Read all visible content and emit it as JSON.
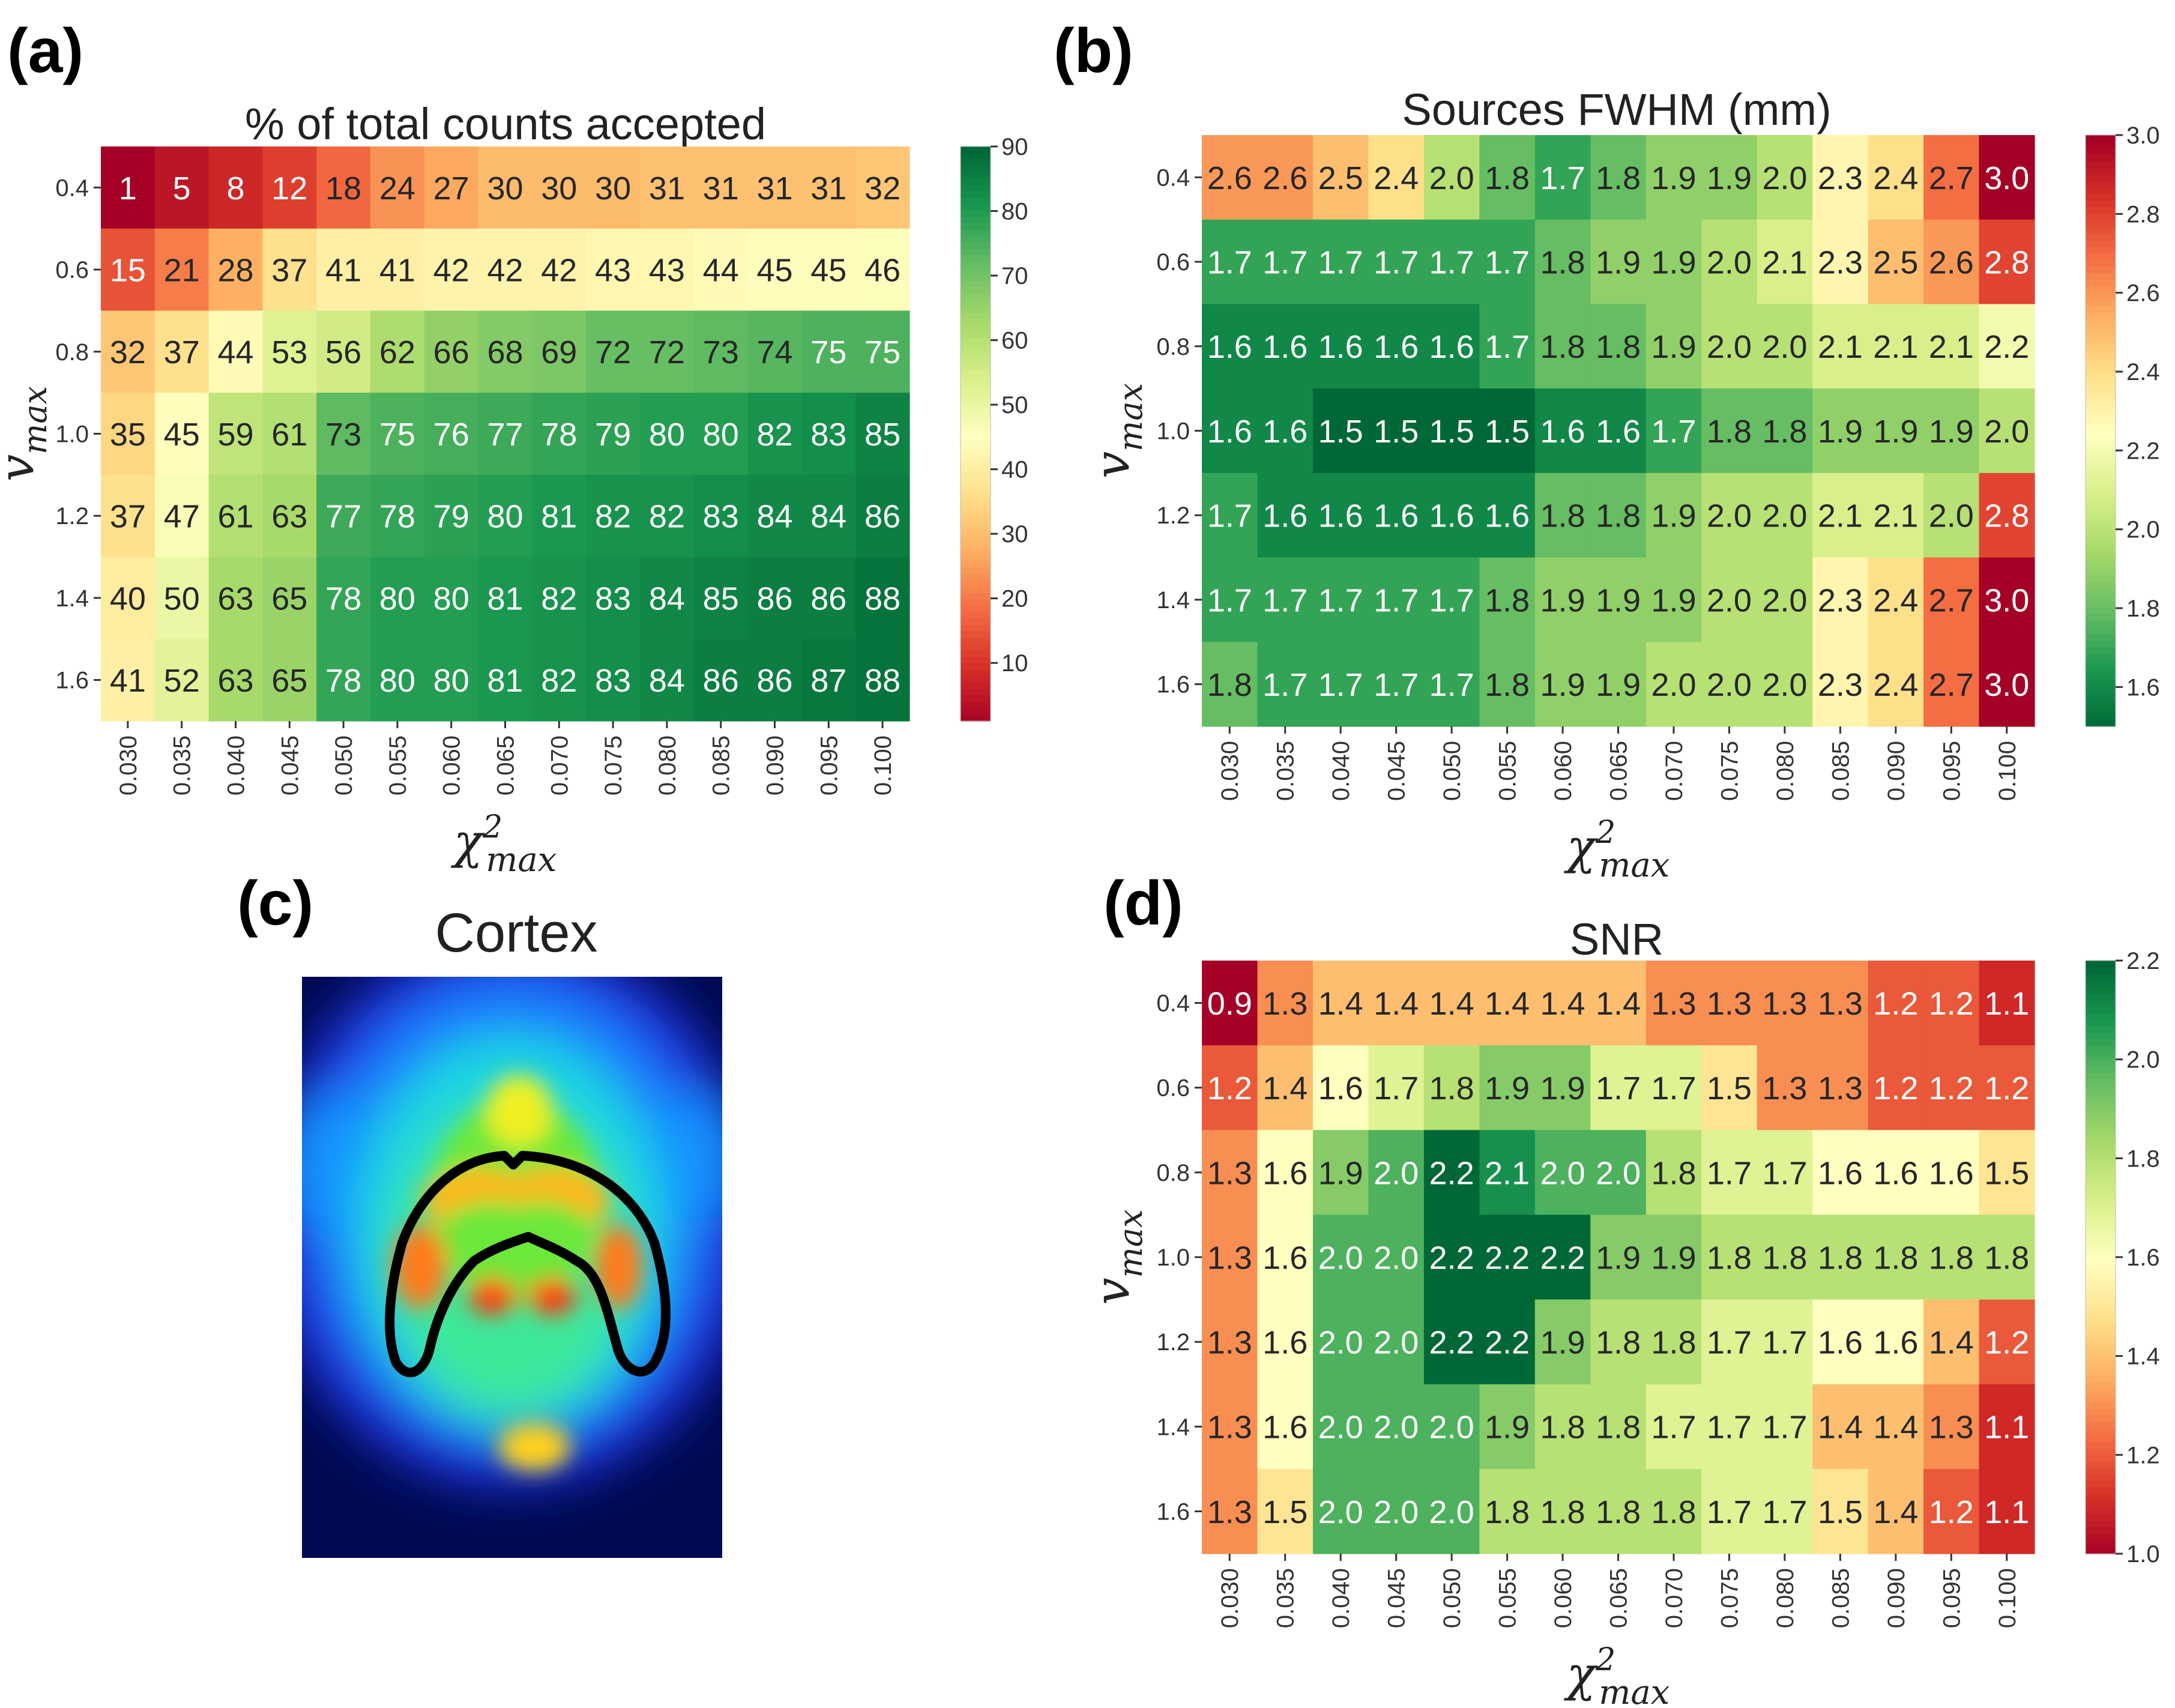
{
  "colors": {
    "rdylgn": [
      "#a50026",
      "#d73027",
      "#f46d43",
      "#fdae61",
      "#fee08b",
      "#ffffbf",
      "#d9ef8b",
      "#a6d96a",
      "#66bd63",
      "#1a9850",
      "#006837"
    ]
  },
  "chart_data": [
    {
      "id": "a",
      "panel_label": "(a)",
      "type": "heatmap",
      "title": "% of total counts accepted",
      "xlabel": {
        "main": "χ",
        "sup": "2",
        "sub": "max"
      },
      "ylabel": {
        "main": "v",
        "sub": "max"
      },
      "x": [
        "0.030",
        "0.035",
        "0.040",
        "0.045",
        "0.050",
        "0.055",
        "0.060",
        "0.065",
        "0.070",
        "0.075",
        "0.080",
        "0.085",
        "0.090",
        "0.095",
        "0.100"
      ],
      "y": [
        "0.4",
        "0.6",
        "0.8",
        "1.0",
        "1.2",
        "1.4",
        "1.6"
      ],
      "values": [
        [
          1,
          5,
          8,
          12,
          18,
          24,
          27,
          30,
          30,
          30,
          31,
          31,
          31,
          31,
          32
        ],
        [
          15,
          21,
          28,
          37,
          41,
          41,
          42,
          42,
          42,
          43,
          43,
          44,
          45,
          45,
          46
        ],
        [
          32,
          37,
          44,
          53,
          56,
          62,
          66,
          68,
          69,
          72,
          72,
          73,
          74,
          75,
          75
        ],
        [
          35,
          45,
          59,
          61,
          73,
          75,
          76,
          77,
          78,
          79,
          80,
          80,
          82,
          83,
          85
        ],
        [
          37,
          47,
          61,
          63,
          77,
          78,
          79,
          80,
          81,
          82,
          82,
          83,
          84,
          84,
          86
        ],
        [
          40,
          50,
          63,
          65,
          78,
          80,
          80,
          81,
          82,
          83,
          84,
          85,
          86,
          86,
          88
        ],
        [
          41,
          52,
          63,
          65,
          78,
          80,
          80,
          81,
          82,
          83,
          84,
          86,
          86,
          87,
          88
        ]
      ],
      "decimals": 0,
      "colormap": "RdYlGn",
      "vmin": 1,
      "vmax": 90,
      "colorbar_ticks": [
        "10",
        "20",
        "30",
        "40",
        "50",
        "60",
        "70",
        "80",
        "90"
      ]
    },
    {
      "id": "b",
      "panel_label": "(b)",
      "type": "heatmap",
      "title": "Sources FWHM (mm)",
      "xlabel": {
        "main": "χ",
        "sup": "2",
        "sub": "max"
      },
      "ylabel": {
        "main": "v",
        "sub": "max"
      },
      "x": [
        "0.030",
        "0.035",
        "0.040",
        "0.045",
        "0.050",
        "0.055",
        "0.060",
        "0.065",
        "0.070",
        "0.075",
        "0.080",
        "0.085",
        "0.090",
        "0.095",
        "0.100"
      ],
      "y": [
        "0.4",
        "0.6",
        "0.8",
        "1.0",
        "1.2",
        "1.4",
        "1.6"
      ],
      "values": [
        [
          2.6,
          2.6,
          2.5,
          2.4,
          2.0,
          1.8,
          1.7,
          1.8,
          1.9,
          1.9,
          2.0,
          2.3,
          2.4,
          2.7,
          3.0
        ],
        [
          1.7,
          1.7,
          1.7,
          1.7,
          1.7,
          1.7,
          1.8,
          1.9,
          1.9,
          2.0,
          2.1,
          2.3,
          2.5,
          2.6,
          2.8
        ],
        [
          1.6,
          1.6,
          1.6,
          1.6,
          1.6,
          1.7,
          1.8,
          1.8,
          1.9,
          2.0,
          2.0,
          2.1,
          2.1,
          2.1,
          2.2
        ],
        [
          1.6,
          1.6,
          1.5,
          1.5,
          1.5,
          1.5,
          1.6,
          1.6,
          1.7,
          1.8,
          1.8,
          1.9,
          1.9,
          1.9,
          2.0
        ],
        [
          1.7,
          1.6,
          1.6,
          1.6,
          1.6,
          1.6,
          1.8,
          1.8,
          1.9,
          2.0,
          2.0,
          2.1,
          2.1,
          2.0,
          2.8
        ],
        [
          1.7,
          1.7,
          1.7,
          1.7,
          1.7,
          1.8,
          1.9,
          1.9,
          1.9,
          2.0,
          2.0,
          2.3,
          2.4,
          2.7,
          3.0
        ],
        [
          1.8,
          1.7,
          1.7,
          1.7,
          1.7,
          1.8,
          1.9,
          1.9,
          2.0,
          2.0,
          2.0,
          2.3,
          2.4,
          2.7,
          3.0
        ]
      ],
      "decimals": 1,
      "colormap": "RdYlGn_r",
      "vmin": 1.5,
      "vmax": 3.0,
      "colorbar_ticks": [
        "1.6",
        "1.8",
        "2.0",
        "2.2",
        "2.4",
        "2.6",
        "2.8",
        "3.0"
      ]
    },
    {
      "id": "d",
      "panel_label": "(d)",
      "type": "heatmap",
      "title": "SNR",
      "xlabel": {
        "main": "χ",
        "sup": "2",
        "sub": "max"
      },
      "ylabel": {
        "main": "v",
        "sub": "max"
      },
      "x": [
        "0.030",
        "0.035",
        "0.040",
        "0.045",
        "0.050",
        "0.055",
        "0.060",
        "0.065",
        "0.070",
        "0.075",
        "0.080",
        "0.085",
        "0.090",
        "0.095",
        "0.100"
      ],
      "y": [
        "0.4",
        "0.6",
        "0.8",
        "1.0",
        "1.2",
        "1.4",
        "1.6"
      ],
      "values": [
        [
          0.9,
          1.3,
          1.4,
          1.4,
          1.4,
          1.4,
          1.4,
          1.4,
          1.3,
          1.3,
          1.3,
          1.3,
          1.2,
          1.2,
          1.1
        ],
        [
          1.2,
          1.4,
          1.6,
          1.7,
          1.8,
          1.9,
          1.9,
          1.7,
          1.7,
          1.5,
          1.3,
          1.3,
          1.2,
          1.2,
          1.2
        ],
        [
          1.3,
          1.6,
          1.9,
          2.0,
          2.2,
          2.1,
          2.0,
          2.0,
          1.8,
          1.7,
          1.7,
          1.6,
          1.6,
          1.6,
          1.5
        ],
        [
          1.3,
          1.6,
          2.0,
          2.0,
          2.2,
          2.2,
          2.2,
          1.9,
          1.9,
          1.8,
          1.8,
          1.8,
          1.8,
          1.8,
          1.8
        ],
        [
          1.3,
          1.6,
          2.0,
          2.0,
          2.2,
          2.2,
          1.9,
          1.8,
          1.8,
          1.7,
          1.7,
          1.6,
          1.6,
          1.4,
          1.2
        ],
        [
          1.3,
          1.6,
          2.0,
          2.0,
          2.0,
          1.9,
          1.8,
          1.8,
          1.7,
          1.7,
          1.7,
          1.4,
          1.4,
          1.3,
          1.1
        ],
        [
          1.3,
          1.5,
          2.0,
          2.0,
          2.0,
          1.8,
          1.8,
          1.8,
          1.8,
          1.7,
          1.7,
          1.5,
          1.4,
          1.2,
          1.1
        ]
      ],
      "decimals": 1,
      "colormap": "RdYlGn",
      "vmin": 1.0,
      "vmax": 2.2,
      "colorbar_ticks": [
        "1.0",
        "1.2",
        "1.4",
        "1.6",
        "1.8",
        "2.0",
        "2.2"
      ]
    }
  ],
  "image_panel": {
    "panel_label": "(c)",
    "title": "Cortex",
    "description": "PET image of a rodent brain (jet colormap) with cortex region outlined in black"
  }
}
